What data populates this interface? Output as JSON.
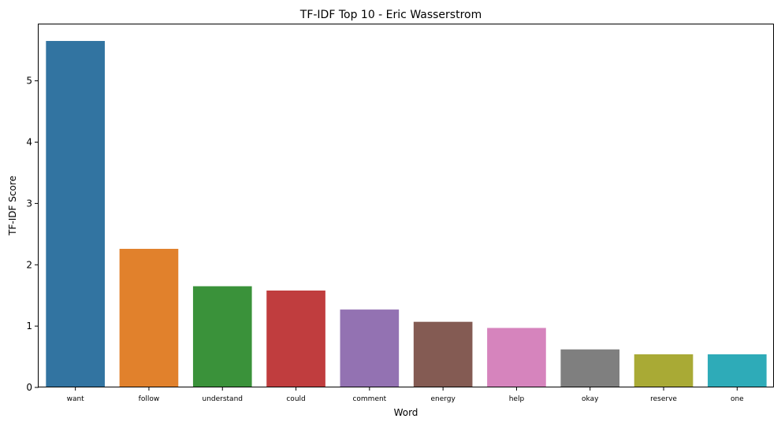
{
  "chart_data": {
    "type": "bar",
    "title": "TF-IDF Top 10 - Eric Wasserstrom",
    "xlabel": "Word",
    "ylabel": "TF-IDF Score",
    "categories": [
      "want",
      "follow",
      "understand",
      "could",
      "comment",
      "energy",
      "help",
      "okay",
      "reserve",
      "one"
    ],
    "values": [
      5.65,
      2.26,
      1.65,
      1.58,
      1.27,
      1.07,
      0.97,
      0.62,
      0.54,
      0.54
    ],
    "colors": [
      "#3274a1",
      "#e1812c",
      "#3a923a",
      "#c03d3e",
      "#9372b2",
      "#845b53",
      "#d684bd",
      "#7f7f7f",
      "#a9aa35",
      "#2eabb8"
    ],
    "ylim": [
      0,
      5.92
    ],
    "yticks": [
      0,
      1,
      2,
      3,
      4,
      5
    ],
    "grid": false,
    "legend": "none"
  }
}
